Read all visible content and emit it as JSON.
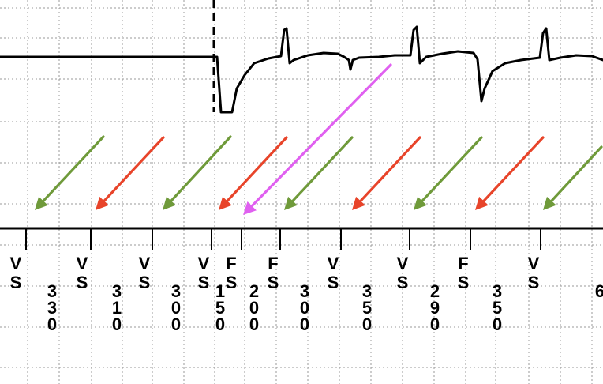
{
  "figure": {
    "colors": {
      "background": "#ffffff",
      "grid": "#9a9a9a",
      "trace": "#000000",
      "sensed_arrow": "#6f9a3a",
      "paced_arrow": "#e8442a",
      "highlight_arrow": "#e060f0"
    }
  },
  "annotations": {
    "marker_symbols": [
      {
        "top": "V",
        "bottom": "S"
      },
      {
        "top": "V",
        "bottom": "S"
      },
      {
        "top": "V",
        "bottom": "S"
      },
      {
        "top": "V",
        "bottom": "S"
      },
      {
        "top": "F",
        "bottom": "S"
      },
      {
        "top": "F",
        "bottom": "S"
      },
      {
        "top": "V",
        "bottom": "S"
      },
      {
        "top": "V",
        "bottom": "S"
      },
      {
        "top": "F",
        "bottom": "S"
      },
      {
        "top": "V",
        "bottom": "S"
      }
    ],
    "intervals": [
      "330",
      "310",
      "300",
      "150",
      "200",
      "300",
      "350",
      "290",
      "350",
      "6"
    ],
    "arrows": [
      "sensed",
      "paced",
      "sensed",
      "paced",
      "highlight",
      "sensed",
      "paced",
      "sensed",
      "paced",
      "sensed"
    ]
  }
}
